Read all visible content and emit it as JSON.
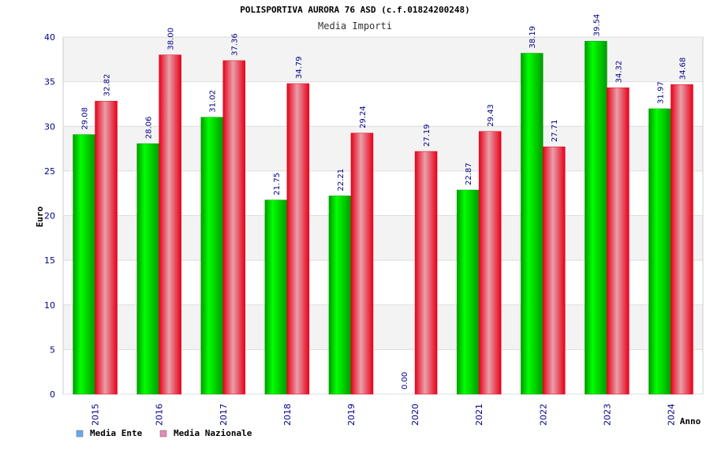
{
  "chart_data": {
    "type": "bar",
    "title": "POLISPORTIVA AURORA 76 ASD (c.f.01824200248)",
    "subtitle": "Media Importi",
    "xlabel": "Anno",
    "ylabel": "Euro",
    "ylim": [
      0,
      40
    ],
    "yticks": [
      0,
      5,
      10,
      15,
      20,
      25,
      30,
      35,
      40
    ],
    "grid": true,
    "legend_position": "bottom-left",
    "categories": [
      "2015",
      "2016",
      "2017",
      "2018",
      "2019",
      "2020",
      "2021",
      "2022",
      "2023",
      "2024"
    ],
    "series": [
      {
        "name": "Media Ente",
        "legend_color": "#6aa8f0",
        "bar_color": "#00c800",
        "values": [
          29.08,
          28.06,
          31.02,
          21.75,
          22.21,
          0.0,
          22.87,
          38.19,
          39.54,
          31.97
        ],
        "labels": [
          "29.08",
          "28.06",
          "31.02",
          "21.75",
          "22.21",
          "0.00",
          "22.87",
          "38.19",
          "39.54",
          "31.97"
        ]
      },
      {
        "name": "Media Nazionale",
        "legend_color": "#e88ab8",
        "bar_color": "#ff1a2a",
        "values": [
          32.82,
          38.0,
          37.36,
          34.79,
          29.24,
          27.19,
          29.43,
          27.71,
          34.32,
          34.68
        ],
        "labels": [
          "32.82",
          "38.00",
          "37.36",
          "34.79",
          "29.24",
          "27.19",
          "29.43",
          "27.71",
          "34.32",
          "34.68"
        ]
      }
    ]
  }
}
